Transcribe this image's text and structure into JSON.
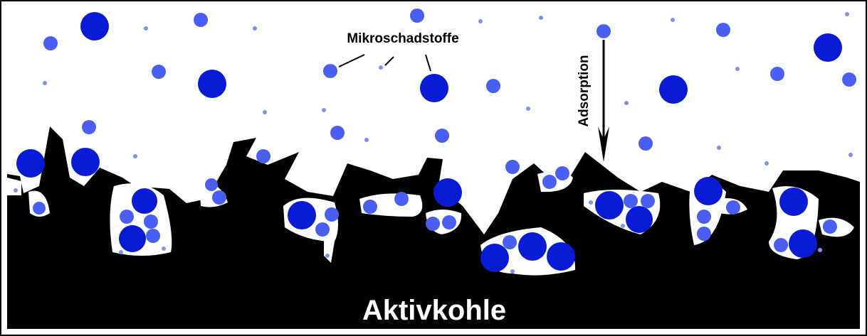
{
  "labels": {
    "pollutants": "Mikroschadstoffe",
    "process": "Adsorption",
    "material": "Aktivkohle"
  }
}
